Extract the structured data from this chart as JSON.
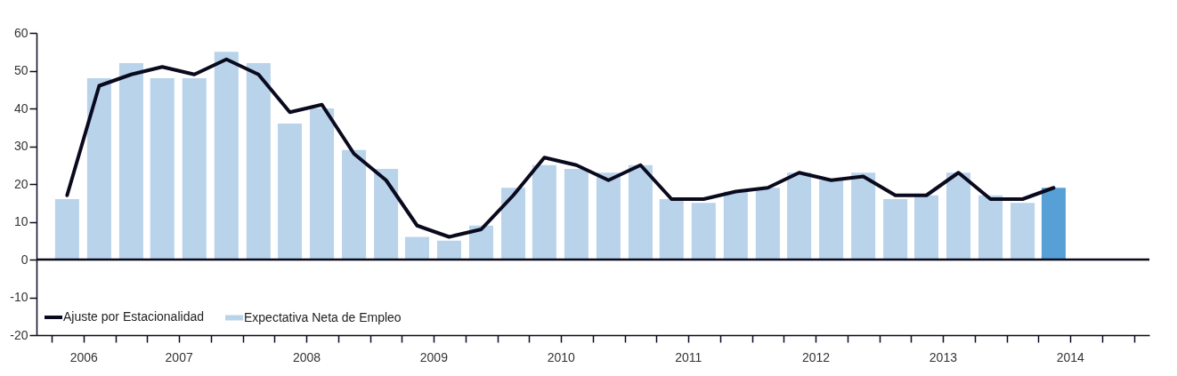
{
  "chart_data": {
    "type": "bar",
    "x": [
      "2006-08-15",
      "2006-11-15",
      "2007-02-15",
      "2007-05-15",
      "2007-08-15",
      "2007-11-15",
      "2008-02-15",
      "2008-05-15",
      "2008-08-15",
      "2008-11-15",
      "2009-02-15",
      "2009-05-15",
      "2009-08-15",
      "2009-11-15",
      "2010-02-15",
      "2010-05-15",
      "2010-08-15",
      "2010-11-15",
      "2011-02-15",
      "2011-05-15",
      "2011-08-15",
      "2011-11-15",
      "2012-02-15",
      "2012-05-15",
      "2012-08-15",
      "2012-11-15",
      "2013-02-15",
      "2013-05-15",
      "2013-08-15",
      "2013-11-15",
      "2014-02-15",
      "2014-05-15"
    ],
    "series": [
      {
        "name": "Ajuste por Estacionalidad",
        "type": "line",
        "color": "#0a0a1e",
        "values": [
          17,
          46,
          49,
          51,
          49,
          53,
          49,
          39,
          41,
          28,
          21,
          9,
          6,
          8,
          17,
          27,
          25,
          21,
          25,
          16,
          16,
          18,
          19,
          23,
          21,
          22,
          17,
          17,
          23,
          16,
          16,
          19
        ]
      },
      {
        "name": "Expectativa Neta de Empleo",
        "color": "#b9d3eb",
        "colors": [
          "#b9d3eb",
          "#b9d3eb",
          "#b9d3eb",
          "#b9d3eb",
          "#b9d3eb",
          "#b9d3eb",
          "#b9d3eb",
          "#b9d3eb",
          "#b9d3eb",
          "#b9d3eb",
          "#b9d3eb",
          "#b9d3eb",
          "#b9d3eb",
          "#b9d3eb",
          "#b9d3eb",
          "#b9d3eb",
          "#b9d3eb",
          "#b9d3eb",
          "#b9d3eb",
          "#b9d3eb",
          "#b9d3eb",
          "#b9d3eb",
          "#b9d3eb",
          "#b9d3eb",
          "#b9d3eb",
          "#b9d3eb",
          "#b9d3eb",
          "#b9d3eb",
          "#b9d3eb",
          "#b9d3eb",
          "#b9d3eb",
          "#56a0d6"
        ],
        "values": [
          16,
          48,
          52,
          48,
          48,
          55,
          52,
          36,
          40,
          29,
          24,
          6,
          5,
          9,
          19,
          25,
          24,
          23,
          25,
          16,
          15,
          18,
          19,
          23,
          21,
          23,
          16,
          17,
          23,
          17,
          15,
          19
        ]
      }
    ],
    "xlim": [
      "2006-06-01",
      "2015-02-01"
    ],
    "xticks": [
      {
        "value": "2006-07-01",
        "label": null
      },
      {
        "value": "2006-10-01",
        "label": "2006"
      },
      {
        "value": "2007-01-01",
        "label": null
      },
      {
        "value": "2007-04-01",
        "label": null
      },
      {
        "value": "2007-07-01",
        "label": "2007"
      },
      {
        "value": "2007-10-01",
        "label": null
      },
      {
        "value": "2008-01-01",
        "label": null
      },
      {
        "value": "2008-04-01",
        "label": null
      },
      {
        "value": "2008-07-01",
        "label": "2008"
      },
      {
        "value": "2008-10-01",
        "label": null
      },
      {
        "value": "2009-01-01",
        "label": null
      },
      {
        "value": "2009-04-01",
        "label": null
      },
      {
        "value": "2009-07-01",
        "label": "2009"
      },
      {
        "value": "2009-10-01",
        "label": null
      },
      {
        "value": "2010-01-01",
        "label": null
      },
      {
        "value": "2010-04-01",
        "label": null
      },
      {
        "value": "2010-07-01",
        "label": "2010"
      },
      {
        "value": "2010-10-01",
        "label": null
      },
      {
        "value": "2011-01-01",
        "label": null
      },
      {
        "value": "2011-04-01",
        "label": null
      },
      {
        "value": "2011-07-01",
        "label": "2011"
      },
      {
        "value": "2011-10-01",
        "label": null
      },
      {
        "value": "2012-01-01",
        "label": null
      },
      {
        "value": "2012-04-01",
        "label": null
      },
      {
        "value": "2012-07-01",
        "label": "2012"
      },
      {
        "value": "2012-10-01",
        "label": null
      },
      {
        "value": "2013-01-01",
        "label": null
      },
      {
        "value": "2013-04-01",
        "label": null
      },
      {
        "value": "2013-07-01",
        "label": "2013"
      },
      {
        "value": "2013-10-01",
        "label": null
      },
      {
        "value": "2014-01-01",
        "label": null
      },
      {
        "value": "2014-04-01",
        "label": null
      },
      {
        "value": "2014-07-01",
        "label": "2014"
      },
      {
        "value": "2014-10-01",
        "label": null
      },
      {
        "value": "2015-01-01",
        "label": null
      }
    ],
    "ylim": [
      -20,
      60
    ],
    "yticks": [
      -20,
      -10,
      0,
      10,
      20,
      30,
      40,
      50,
      60
    ],
    "ref_lines": [
      {
        "axis": "y",
        "value": 0,
        "color": "#0a0a1e"
      }
    ],
    "grid": false,
    "legend": "bottom left"
  }
}
